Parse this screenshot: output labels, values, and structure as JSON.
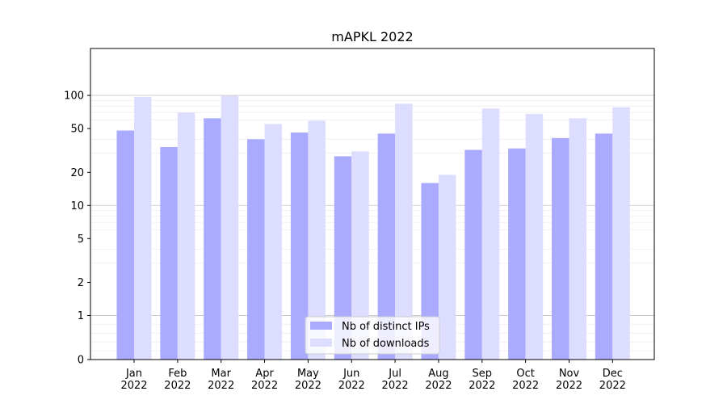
{
  "chart_data": {
    "type": "bar",
    "title": "mAPKL 2022",
    "xlabel": "",
    "ylabel": "",
    "yscale": "symlog",
    "ylim": [
      0,
      120
    ],
    "yticks": [
      0,
      1,
      2,
      5,
      10,
      20,
      50,
      100
    ],
    "ytick_labels": [
      "0",
      "1",
      "2",
      "5",
      "10",
      "20",
      "50",
      "100"
    ],
    "grid": true,
    "legend_position": "bottom-center",
    "categories": [
      [
        "Jan",
        "2022"
      ],
      [
        "Feb",
        "2022"
      ],
      [
        "Mar",
        "2022"
      ],
      [
        "Apr",
        "2022"
      ],
      [
        "May",
        "2022"
      ],
      [
        "Jun",
        "2022"
      ],
      [
        "Jul",
        "2022"
      ],
      [
        "Aug",
        "2022"
      ],
      [
        "Sep",
        "2022"
      ],
      [
        "Oct",
        "2022"
      ],
      [
        "Nov",
        "2022"
      ],
      [
        "Dec",
        "2022"
      ]
    ],
    "series": [
      {
        "name": "Nb of distinct IPs",
        "color": "#aaaaff",
        "values": [
          48,
          34,
          62,
          40,
          46,
          28,
          45,
          16,
          32,
          33,
          41,
          45
        ]
      },
      {
        "name": "Nb of downloads",
        "color": "#ddddff",
        "values": [
          97,
          70,
          99,
          55,
          59,
          31,
          84,
          19,
          76,
          68,
          62,
          78
        ]
      }
    ]
  }
}
